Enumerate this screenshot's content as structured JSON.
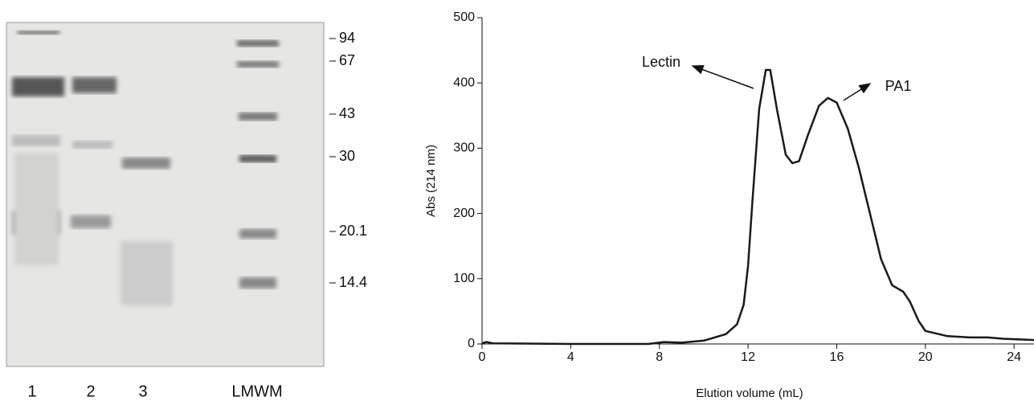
{
  "gel": {
    "lanes": [
      "1",
      "2",
      "3",
      "LMWM"
    ],
    "markers": [
      "94",
      "67",
      "43",
      "30",
      "20.1",
      "14.4"
    ]
  },
  "chart_data": {
    "type": "line",
    "x_label": "Elution volume (mL)",
    "y_label": "Abs (214 nm)",
    "annotations": [
      "Lectin",
      "PA1"
    ],
    "xlim": [
      0,
      24.9
    ],
    "xticks": [
      0,
      4,
      8,
      12,
      16,
      20,
      24
    ],
    "ylim": [
      0,
      500
    ],
    "yticks": [
      0,
      100,
      200,
      300,
      400,
      500
    ],
    "series": [
      {
        "color": "#1a1a1a",
        "x": [
          0,
          0.2,
          0.5,
          4,
          7.5,
          8.2,
          9,
          10,
          11,
          11.5,
          11.8,
          12,
          12.2,
          12.5,
          12.8,
          13,
          13.3,
          13.7,
          14,
          14.3,
          14.7,
          15.2,
          15.6,
          16,
          16.5,
          17,
          17.5,
          18,
          18.5,
          19,
          19.3,
          19.7,
          20,
          21,
          22,
          22.8,
          23.5,
          24.9
        ],
        "values": [
          1,
          3,
          1,
          0,
          0,
          3,
          2,
          5,
          15,
          30,
          60,
          120,
          220,
          360,
          420,
          420,
          360,
          290,
          277,
          280,
          320,
          365,
          377,
          370,
          330,
          270,
          200,
          130,
          90,
          80,
          65,
          35,
          20,
          12,
          10,
          10,
          8,
          6
        ]
      }
    ]
  }
}
